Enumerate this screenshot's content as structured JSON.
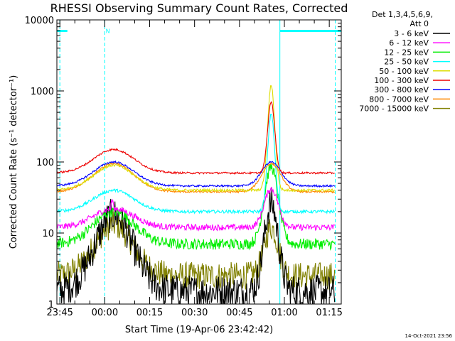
{
  "chart_data": {
    "type": "line",
    "title": "RHESSI Observing Summary Count Rates, Corrected",
    "xlabel": "Start Time (19-Apr-06 23:42:42)",
    "ylabel": "Corrected Count Rate (s⁻¹ detector⁻¹)",
    "yscale": "log",
    "ylim": [
      1,
      10000
    ],
    "xlim_minutes": [
      -1.0,
      94.0
    ],
    "x_unit": "minutes after 23:45 on 19-Apr-06",
    "x_ticks": [
      {
        "label": "23:45",
        "min": 0
      },
      {
        "label": "00:00",
        "min": 15
      },
      {
        "label": "00:15",
        "min": 30
      },
      {
        "label": "00:30",
        "min": 45
      },
      {
        "label": "00:45",
        "min": 60
      },
      {
        "label": "01:00",
        "min": 75
      },
      {
        "label": "01:15",
        "min": 90
      }
    ],
    "y_ticks": [
      {
        "label": "1",
        "value": 1
      },
      {
        "label": "10",
        "value": 10
      },
      {
        "label": "100",
        "value": 100
      },
      {
        "label": "1000",
        "value": 1000
      },
      {
        "label": "10000",
        "value": 10000
      }
    ],
    "legend": {
      "header1": "Det 1,3,4,5,6,9,",
      "header2": "Att 0",
      "placement": "outside-right"
    },
    "series": [
      {
        "name": "3 - 6 keV",
        "color": "#000000",
        "baseline": 1.5,
        "orbit_peak": 18,
        "flare_peak": 26,
        "noise": 0.55
      },
      {
        "name": "6 - 12 keV",
        "color": "#ff00ff",
        "baseline": 12,
        "orbit_peak": 22,
        "flare_peak": 42,
        "noise": 0.1,
        "spike": 28
      },
      {
        "name": "12 - 25 keV",
        "color": "#00ee00",
        "baseline": 7,
        "orbit_peak": 20,
        "flare_peak": 85,
        "noise": 0.18
      },
      {
        "name": "25 - 50 keV",
        "color": "#00ffff",
        "baseline": 20,
        "orbit_peak": 40,
        "flare_peak": 480,
        "noise": 0.05
      },
      {
        "name": "50 - 100 keV",
        "color": "#dddd00",
        "baseline": 40,
        "orbit_peak": 90,
        "flare_peak": 1200,
        "noise": 0.04
      },
      {
        "name": "100 - 300 keV",
        "color": "#ee0000",
        "baseline": 70,
        "orbit_peak": 150,
        "flare_peak": 700,
        "noise": 0.03
      },
      {
        "name": "300 - 800 keV",
        "color": "#0000ff",
        "baseline": 46,
        "orbit_peak": 100,
        "flare_peak": 100,
        "noise": 0.03
      },
      {
        "name": "800 - 7000 keV",
        "color": "#ff8800",
        "baseline": 38,
        "orbit_peak": 95,
        "flare_peak": 95,
        "noise": 0.03
      },
      {
        "name": "7000 - 15000 keV",
        "color": "#808000",
        "baseline": 2.5,
        "orbit_peak": 13,
        "flare_peak": 12,
        "noise": 0.45
      }
    ],
    "annotations": {
      "night_intervals_min": [
        [
          -1.0,
          2.5
        ],
        [
          73.5,
          94.0
        ]
      ],
      "night_level": 7000,
      "saa_marker_label": "N",
      "saa_marker_min": 15.3,
      "dashed_lines_min": [
        0.0,
        15.0,
        92.0
      ],
      "solid_lines_min": [
        73.5
      ]
    },
    "footer_timestamp": "14-Oct-2021 23:56",
    "grid": false
  }
}
